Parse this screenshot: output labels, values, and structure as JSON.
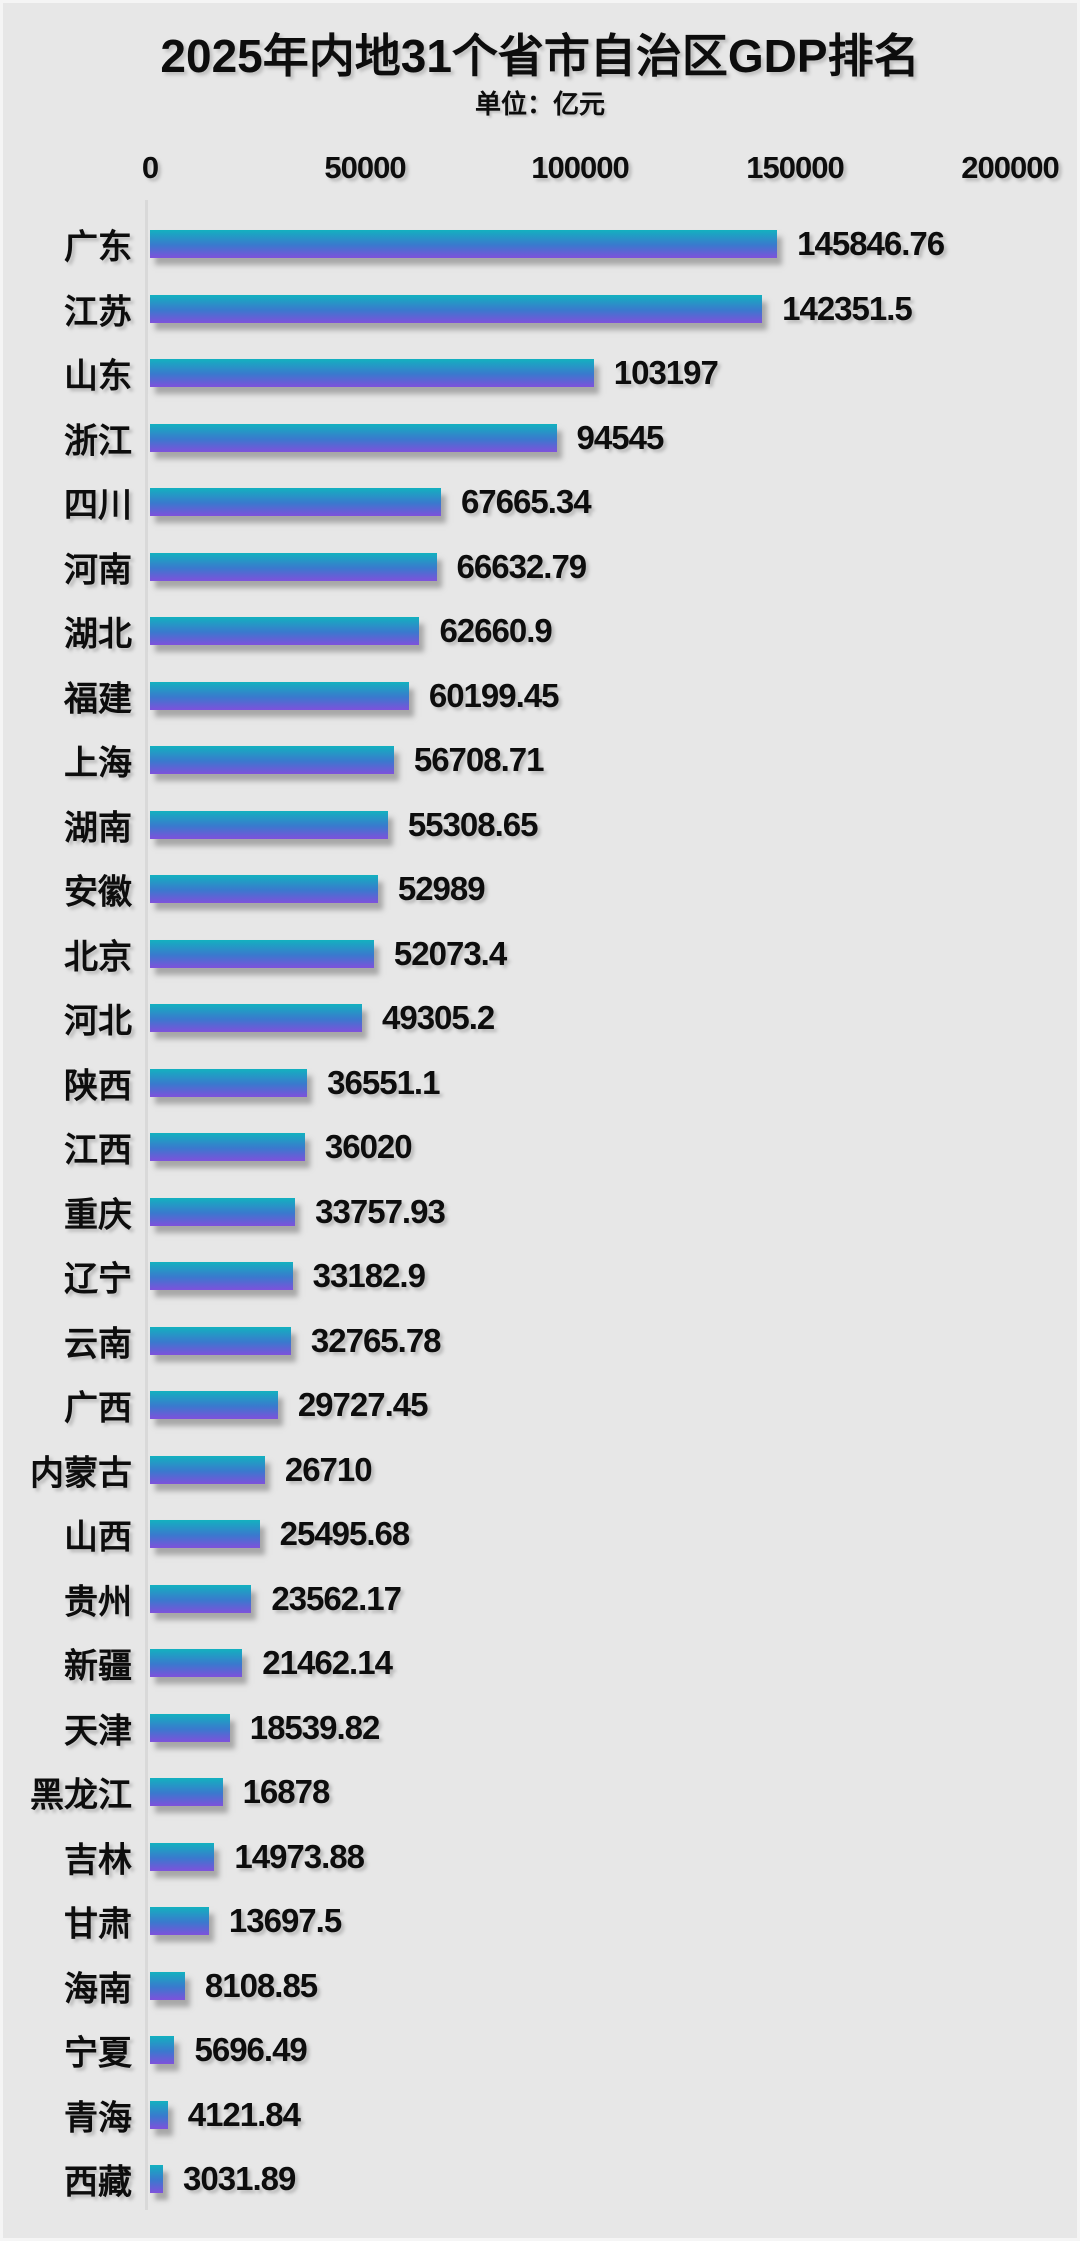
{
  "title": "2025年内地31个省市自治区GDP排名",
  "subtitle": "单位：亿元",
  "chart_data": {
    "type": "bar",
    "orientation": "horizontal",
    "title": "2025年内地31个省市自治区GDP排名",
    "unit": "亿元",
    "xlabel": "",
    "ylabel": "",
    "xlim": [
      0,
      200000
    ],
    "xticks": [
      0,
      50000,
      100000,
      150000,
      200000
    ],
    "grid": false,
    "legend": false,
    "categories": [
      "广东",
      "江苏",
      "山东",
      "浙江",
      "四川",
      "河南",
      "湖北",
      "福建",
      "上海",
      "湖南",
      "安徽",
      "北京",
      "河北",
      "陕西",
      "江西",
      "重庆",
      "辽宁",
      "云南",
      "广西",
      "内蒙古",
      "山西",
      "贵州",
      "新疆",
      "天津",
      "黑龙江",
      "吉林",
      "甘肃",
      "海南",
      "宁夏",
      "青海",
      "西藏"
    ],
    "values": [
      145846.76,
      142351.5,
      103197,
      94545,
      67665.34,
      66632.79,
      62660.9,
      60199.45,
      56708.71,
      55308.65,
      52989,
      52073.4,
      49305.2,
      36551.1,
      36020,
      33757.93,
      33182.9,
      32765.78,
      29727.45,
      26710,
      25495.68,
      23562.17,
      21462.14,
      18539.82,
      16878,
      14973.88,
      13697.5,
      8108.85,
      5696.49,
      4121.84,
      3031.89
    ],
    "colors": {
      "background": "#e7e7e7",
      "text": "#0d0d0d",
      "axis_line": "#d9d9d9",
      "bar_gradient_top": "#13b1bf",
      "bar_gradient_mid": "#3b78ce",
      "bar_gradient_bottom": "#7e51db"
    }
  }
}
